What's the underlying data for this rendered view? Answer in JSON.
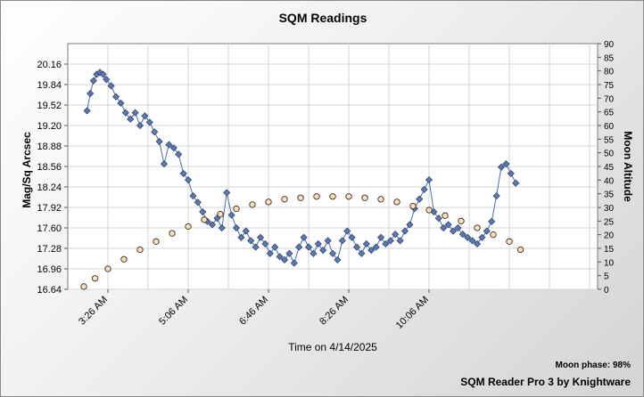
{
  "chart_data": {
    "type": "scatter",
    "title": "SQM Readings",
    "xlabel": "Time on 4/14/2025",
    "ylabel": "Mag/Sq Arcsec",
    "y2label": "Moon Altitude",
    "x_range": [
      "02:36",
      "13:36"
    ],
    "x_ticks": [
      "3:26 AM",
      "5:06 AM",
      "6:46 AM",
      "8:26 AM",
      "10:06 AM"
    ],
    "ylim": [
      16.64,
      20.48
    ],
    "y_ticks": [
      "16.64",
      "16.96",
      "17.28",
      "17.60",
      "17.92",
      "18.24",
      "18.56",
      "18.88",
      "19.20",
      "19.52",
      "19.84",
      "20.16"
    ],
    "y2lim": [
      0,
      90
    ],
    "y2_ticks": [
      "0",
      "5",
      "10",
      "15",
      "20",
      "25",
      "30",
      "35",
      "40",
      "45",
      "50",
      "55",
      "60",
      "65",
      "70",
      "75",
      "80",
      "85",
      "90"
    ],
    "grid": true,
    "series": [
      {
        "axis": "left",
        "color": "#5b7ab5",
        "marker": "diamond",
        "points": [
          [
            "3:00",
            19.43
          ],
          [
            "3:04",
            19.7
          ],
          [
            "3:08",
            19.9
          ],
          [
            "3:12",
            20.0
          ],
          [
            "3:16",
            20.03
          ],
          [
            "3:20",
            20.0
          ],
          [
            "3:24",
            19.92
          ],
          [
            "3:30",
            19.82
          ],
          [
            "3:36",
            19.65
          ],
          [
            "3:42",
            19.55
          ],
          [
            "3:48",
            19.4
          ],
          [
            "3:54",
            19.3
          ],
          [
            "4:00",
            19.4
          ],
          [
            "4:06",
            19.2
          ],
          [
            "4:12",
            19.35
          ],
          [
            "4:18",
            19.25
          ],
          [
            "4:24",
            19.1
          ],
          [
            "4:30",
            18.95
          ],
          [
            "4:36",
            18.6
          ],
          [
            "4:42",
            18.9
          ],
          [
            "4:48",
            18.85
          ],
          [
            "4:54",
            18.75
          ],
          [
            "5:00",
            18.45
          ],
          [
            "5:06",
            18.35
          ],
          [
            "5:12",
            18.1
          ],
          [
            "5:18",
            18.0
          ],
          [
            "5:24",
            17.85
          ],
          [
            "5:30",
            17.7
          ],
          [
            "5:36",
            17.65
          ],
          [
            "5:42",
            17.75
          ],
          [
            "5:48",
            17.6
          ],
          [
            "5:54",
            18.15
          ],
          [
            "6:00",
            17.8
          ],
          [
            "6:06",
            17.6
          ],
          [
            "6:12",
            17.45
          ],
          [
            "6:18",
            17.55
          ],
          [
            "6:24",
            17.4
          ],
          [
            "6:30",
            17.3
          ],
          [
            "6:36",
            17.45
          ],
          [
            "6:42",
            17.35
          ],
          [
            "6:48",
            17.2
          ],
          [
            "6:54",
            17.3
          ],
          [
            "7:00",
            17.15
          ],
          [
            "7:06",
            17.1
          ],
          [
            "7:12",
            17.2
          ],
          [
            "7:18",
            17.05
          ],
          [
            "7:24",
            17.3
          ],
          [
            "7:30",
            17.45
          ],
          [
            "7:36",
            17.3
          ],
          [
            "7:42",
            17.2
          ],
          [
            "7:48",
            17.35
          ],
          [
            "7:54",
            17.25
          ],
          [
            "8:00",
            17.4
          ],
          [
            "8:06",
            17.2
          ],
          [
            "8:12",
            17.1
          ],
          [
            "8:18",
            17.4
          ],
          [
            "8:24",
            17.55
          ],
          [
            "8:30",
            17.45
          ],
          [
            "8:36",
            17.3
          ],
          [
            "8:42",
            17.2
          ],
          [
            "8:48",
            17.35
          ],
          [
            "8:54",
            17.25
          ],
          [
            "9:00",
            17.3
          ],
          [
            "9:06",
            17.45
          ],
          [
            "9:12",
            17.35
          ],
          [
            "9:18",
            17.4
          ],
          [
            "9:24",
            17.5
          ],
          [
            "9:30",
            17.4
          ],
          [
            "9:36",
            17.55
          ],
          [
            "9:42",
            17.65
          ],
          [
            "9:48",
            17.9
          ],
          [
            "9:54",
            18.05
          ],
          [
            "10:00",
            18.2
          ],
          [
            "10:06",
            18.35
          ],
          [
            "10:12",
            17.85
          ],
          [
            "10:18",
            17.75
          ],
          [
            "10:24",
            17.6
          ],
          [
            "10:30",
            17.65
          ],
          [
            "10:36",
            17.55
          ],
          [
            "10:42",
            17.6
          ],
          [
            "10:48",
            17.5
          ],
          [
            "10:54",
            17.45
          ],
          [
            "11:00",
            17.4
          ],
          [
            "11:06",
            17.35
          ],
          [
            "11:12",
            17.45
          ],
          [
            "11:18",
            17.55
          ],
          [
            "11:24",
            17.7
          ],
          [
            "11:30",
            18.1
          ],
          [
            "11:36",
            18.55
          ],
          [
            "11:42",
            18.6
          ],
          [
            "11:48",
            18.45
          ],
          [
            "11:54",
            18.3
          ]
        ]
      },
      {
        "axis": "right",
        "color": "#fde0c0",
        "marker": "circle",
        "points": [
          [
            "2:56",
            1
          ],
          [
            "3:10",
            4
          ],
          [
            "3:26",
            7.5
          ],
          [
            "3:46",
            11
          ],
          [
            "4:06",
            14.5
          ],
          [
            "4:26",
            17.5
          ],
          [
            "4:46",
            20.5
          ],
          [
            "5:06",
            23
          ],
          [
            "5:26",
            25.5
          ],
          [
            "5:46",
            27.5
          ],
          [
            "6:06",
            29.5
          ],
          [
            "6:26",
            31
          ],
          [
            "6:46",
            32
          ],
          [
            "7:06",
            33
          ],
          [
            "7:26",
            33.5
          ],
          [
            "7:46",
            34
          ],
          [
            "8:06",
            34
          ],
          [
            "8:26",
            34
          ],
          [
            "8:46",
            33.5
          ],
          [
            "9:06",
            33
          ],
          [
            "9:26",
            32
          ],
          [
            "9:46",
            30.5
          ],
          [
            "10:06",
            29
          ],
          [
            "10:26",
            27
          ],
          [
            "10:46",
            25
          ],
          [
            "11:06",
            22.5
          ],
          [
            "11:26",
            20
          ],
          [
            "11:46",
            17.5
          ],
          [
            "12:00",
            14.5
          ]
        ]
      }
    ]
  },
  "footer": {
    "moon_phase": "Moon phase: 98%",
    "credit": "SQM Reader Pro 3 by Knightware"
  }
}
